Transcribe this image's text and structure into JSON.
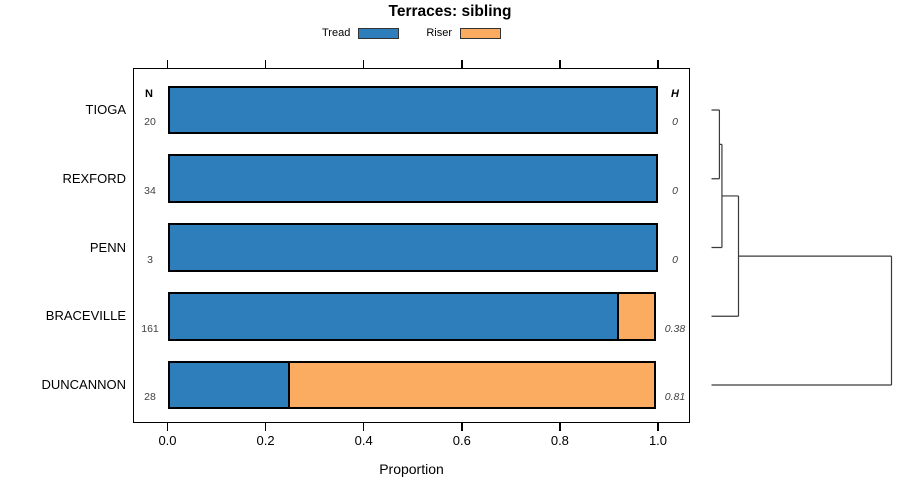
{
  "title": "Terraces: sibling",
  "legend": {
    "items": [
      {
        "label": "Tread",
        "color": "#2F7EBC"
      },
      {
        "label": "Riser",
        "color": "#FBAC61"
      }
    ]
  },
  "chart_data": {
    "type": "bar",
    "orientation": "horizontal",
    "stacked": true,
    "title": "Terraces: sibling",
    "xlabel": "Proportion",
    "xlim": [
      0,
      1
    ],
    "x_ticks": [
      0.0,
      0.2,
      0.4,
      0.6,
      0.8,
      1.0
    ],
    "x_tick_labels": [
      "0.0",
      "0.2",
      "0.4",
      "0.6",
      "0.8",
      "1.0"
    ],
    "grid": false,
    "legend_position": "top",
    "categories": [
      "TIOGA",
      "REXFORD",
      "PENN",
      "BRACEVILLE",
      "DUNCANNON"
    ],
    "series": [
      {
        "name": "Tread",
        "color": "#2F7EBC",
        "values": [
          1.0,
          1.0,
          1.0,
          0.92,
          0.25
        ]
      },
      {
        "name": "Riser",
        "color": "#FBAC61",
        "values": [
          0.0,
          0.0,
          0.0,
          0.08,
          0.75
        ]
      }
    ],
    "n_column": {
      "header": "N",
      "values": [
        "20",
        "34",
        "3",
        "161",
        "28"
      ]
    },
    "h_column": {
      "header": "H",
      "values": [
        "0",
        "0",
        "0",
        "0.38",
        "0.81"
      ]
    },
    "dendrogram": {
      "order": [
        "TIOGA",
        "REXFORD",
        "PENN",
        "BRACEVILLE",
        "DUNCANNON"
      ],
      "merges": [
        {
          "join": [
            "TIOGA",
            "REXFORD"
          ],
          "height_frac": 0.044
        },
        {
          "join": [
            "cluster-1",
            "PENN"
          ],
          "height_frac": 0.058
        },
        {
          "join": [
            "cluster-2",
            "BRACEVILLE"
          ],
          "height_frac": 0.15
        },
        {
          "join": [
            "cluster-3",
            "DUNCANNON"
          ],
          "height_frac": 1.0
        }
      ]
    }
  }
}
